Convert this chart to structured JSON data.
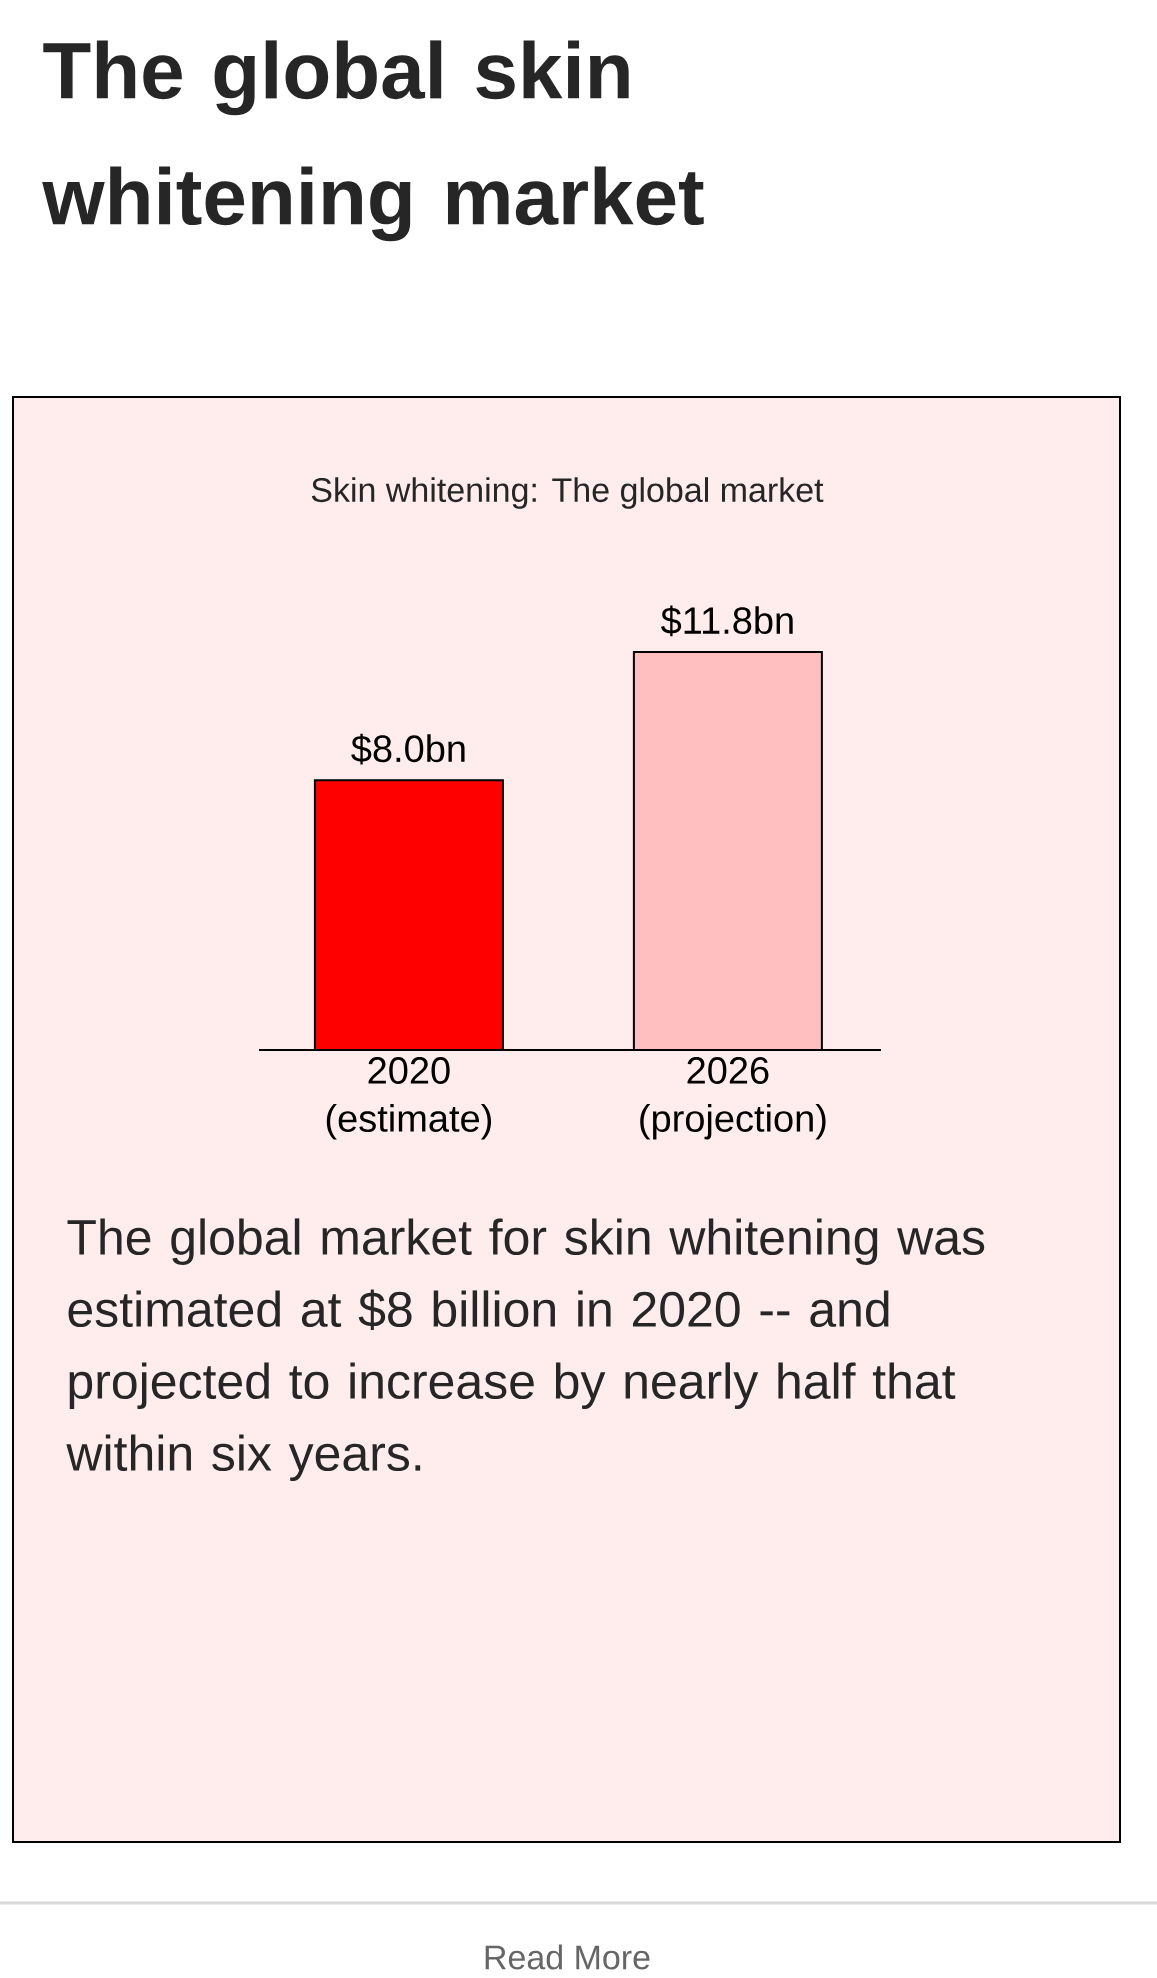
{
  "chart_data": {
    "type": "bar",
    "title": "The global skin whitening market",
    "subtitle": "Skin whitening: The global market",
    "categories": [
      "2020 (estimate)",
      "2026 (projection)"
    ],
    "values": [
      8.0,
      11.8
    ],
    "value_labels": [
      "$8.0bn",
      "$11.8bn"
    ],
    "colors": [
      "#ff0000",
      "#ffbfc0"
    ],
    "annotations": [
      "The global market for skin whitening was estimated at $8 billion in 2020 -- and projected to increase by nearly half that within six years.",
      "Read More"
    ]
  }
}
